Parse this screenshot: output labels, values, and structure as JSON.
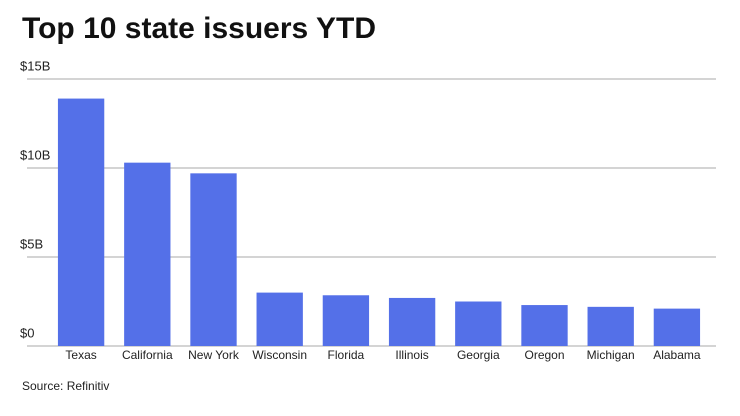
{
  "chart_data": {
    "type": "bar",
    "title": "Top 10 state issuers YTD",
    "categories": [
      "Texas",
      "California",
      "New York",
      "Wisconsin",
      "Florida",
      "Illinois",
      "Georgia",
      "Oregon",
      "Michigan",
      "Alabama"
    ],
    "values": [
      13.9,
      10.3,
      9.7,
      3.0,
      2.85,
      2.7,
      2.5,
      2.3,
      2.2,
      2.1
    ],
    "color": "#5470e8",
    "ylim": [
      0,
      15
    ],
    "yticks": [
      {
        "value": 0,
        "label": "$0"
      },
      {
        "value": 5,
        "label": "$5B"
      },
      {
        "value": 10,
        "label": "$10B"
      },
      {
        "value": 15,
        "label": "$15B"
      }
    ],
    "grid": true,
    "source": "Source: Refinitiv"
  }
}
